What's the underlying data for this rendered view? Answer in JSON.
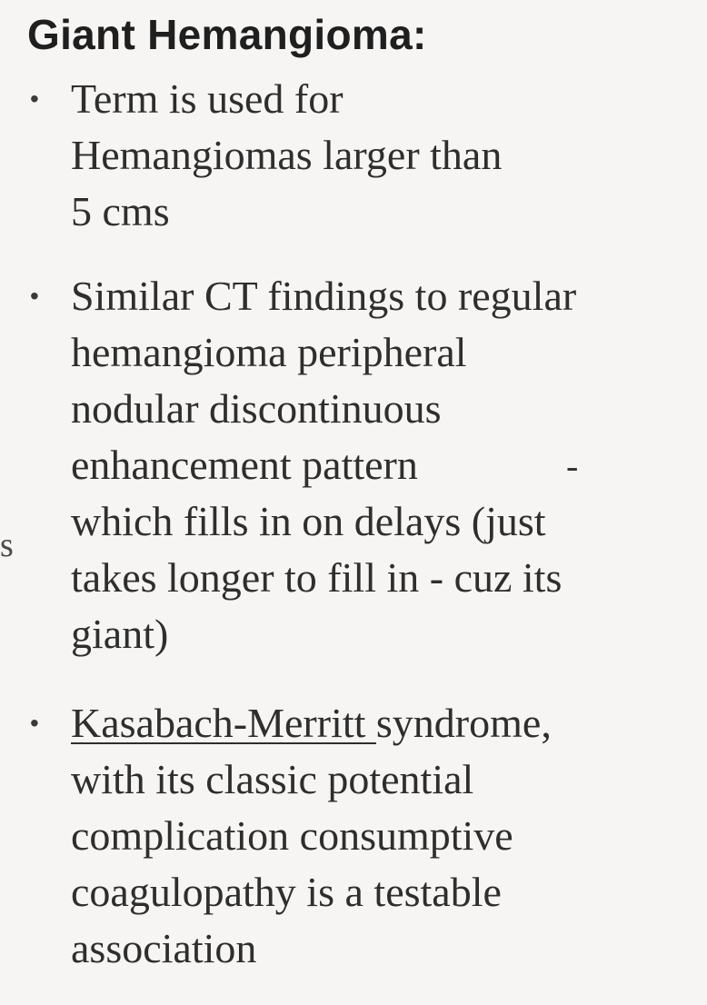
{
  "title": "Giant Hemangioma:",
  "bullets": [
    {
      "lines": [
        "Term is used for",
        "Hemangiomas larger than",
        "5 cms"
      ]
    },
    {
      "lines": [
        "Similar CT findings to regular",
        "hemangioma peripheral",
        "nodular discontinuous",
        "enhancement pattern",
        "which fills in on delays (just",
        "takes longer to fill in - cuz its",
        "giant)"
      ]
    },
    {
      "link": "Kasabach-Merritt ",
      "lines": [
        "syndrome,",
        "with its classic potential",
        "complication consumptive",
        "coagulopathy is a testable",
        "association"
      ]
    }
  ],
  "stray_char": "s",
  "stray_dash": "-",
  "bullet_symbol": "•"
}
